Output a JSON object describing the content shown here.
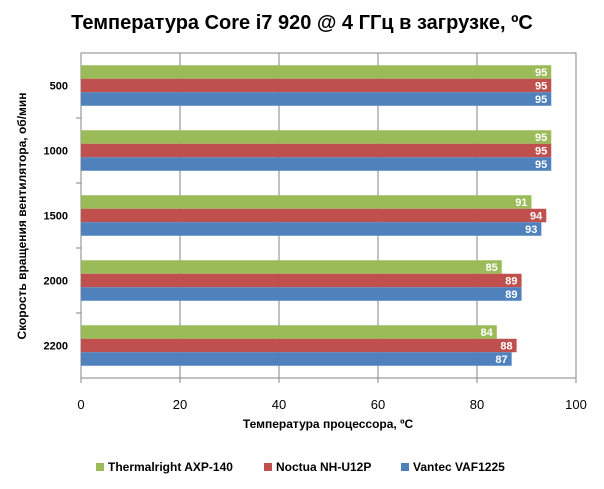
{
  "chart_data": {
    "type": "bar",
    "orientation": "horizontal",
    "title": "Температура Core i7 920 @ 4 ГГц в загрузке, ºС",
    "xlabel": "Температура процессора, ºС",
    "ylabel": "Скорость вращения вентилятора, об/мин",
    "categories": [
      "500",
      "1000",
      "1500",
      "2000",
      "2200"
    ],
    "xlim": [
      0,
      100
    ],
    "xticks": [
      "0",
      "20",
      "40",
      "60",
      "80",
      "100"
    ],
    "grid": "vertical",
    "legend_position": "bottom",
    "series": [
      {
        "name": "Thermalright AXP-140",
        "color": "#9bbb59",
        "values": [
          95,
          95,
          91,
          85,
          84
        ]
      },
      {
        "name": "Noctua NH-U12P",
        "color": "#c0504d",
        "values": [
          95,
          95,
          94,
          89,
          88
        ]
      },
      {
        "name": "Vantec VAF1225",
        "color": "#4f81bd",
        "values": [
          95,
          95,
          93,
          89,
          87
        ]
      }
    ]
  }
}
